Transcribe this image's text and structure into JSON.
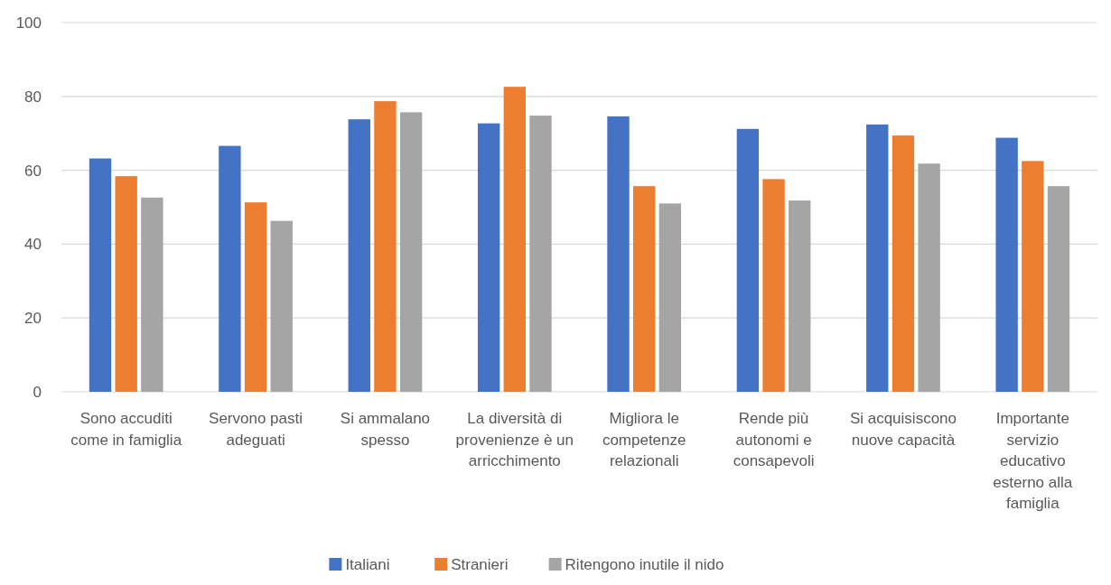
{
  "chart_data": {
    "type": "bar",
    "categories": [
      "Sono accuditi come in famiglia",
      "Servono pasti adeguati",
      "Si ammalano spesso",
      "La diversità di provenienze è un arricchimento",
      "Migliora le competenze relazionali",
      "Rende più autonomi e consapevoli",
      "Si acquisiscono nuove capacità",
      "Importante servizio educativo esterno alla famiglia"
    ],
    "series": [
      {
        "name": "Italiani",
        "color": "#4472c4",
        "values": [
          63.2,
          66.6,
          73.8,
          72.7,
          74.6,
          71.2,
          72.4,
          68.8
        ]
      },
      {
        "name": "Stranieri",
        "color": "#ed7d31",
        "values": [
          58.4,
          51.3,
          78.7,
          82.6,
          55.7,
          57.6,
          69.4,
          62.5
        ]
      },
      {
        "name": "Ritengono inutile il nido",
        "color": "#a5a5a5",
        "values": [
          52.6,
          46.3,
          75.7,
          74.8,
          51.0,
          51.8,
          61.8,
          55.7
        ]
      }
    ],
    "ylim": [
      0,
      100
    ],
    "yticks": [
      0,
      20,
      40,
      60,
      80,
      100
    ],
    "grid": "y",
    "legend": "bottom"
  }
}
